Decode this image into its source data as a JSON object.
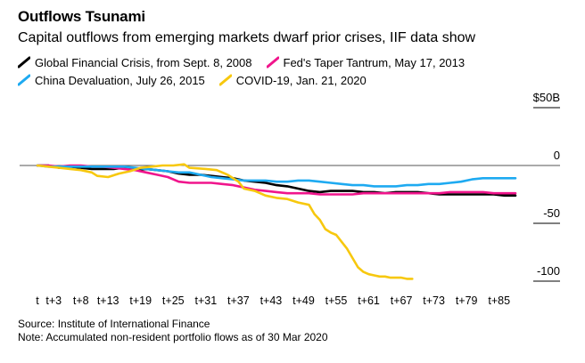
{
  "header": {
    "title": "Outflows Tsunami",
    "subtitle": "Capital outflows from emerging markets dwarf prior crises, IIF data show"
  },
  "footer": {
    "source": "Source: Institute of International Finance",
    "note": "Note: Accumulated non-resident portfolio flows as of 30 Mar 2020"
  },
  "chart_data": {
    "type": "line",
    "title": "Outflows Tsunami",
    "subtitle": "Capital outflows from emerging markets dwarf prior crises, IIF data show",
    "xlabel": "",
    "ylabel": "",
    "xlim": [
      0,
      90
    ],
    "ylim": [
      -100,
      50
    ],
    "x_ticks": [
      {
        "x": 0,
        "label": "t"
      },
      {
        "x": 3,
        "label": "t+3"
      },
      {
        "x": 8,
        "label": "t+8"
      },
      {
        "x": 13,
        "label": "t+13"
      },
      {
        "x": 19,
        "label": "t+19"
      },
      {
        "x": 25,
        "label": "t+25"
      },
      {
        "x": 31,
        "label": "t+31"
      },
      {
        "x": 37,
        "label": "t+37"
      },
      {
        "x": 43,
        "label": "t+43"
      },
      {
        "x": 49,
        "label": "t+49"
      },
      {
        "x": 55,
        "label": "t+55"
      },
      {
        "x": 61,
        "label": "t+61"
      },
      {
        "x": 67,
        "label": "t+67"
      },
      {
        "x": 73,
        "label": "t+73"
      },
      {
        "x": 79,
        "label": "t+79"
      },
      {
        "x": 85,
        "label": "t+85"
      }
    ],
    "y_ticks": [
      {
        "y": 50,
        "label": "$50B"
      },
      {
        "y": 0,
        "label": "0"
      },
      {
        "y": -50,
        "label": "-50"
      },
      {
        "y": -100,
        "label": "-100"
      }
    ],
    "grid": true,
    "series": [
      {
        "name": "Global Financial Crisis, from Sept. 8, 2008",
        "color": "#000000",
        "points": [
          [
            0,
            0
          ],
          [
            2,
            0
          ],
          [
            4,
            -2
          ],
          [
            6,
            -1
          ],
          [
            8,
            -2
          ],
          [
            10,
            -3
          ],
          [
            12,
            -3
          ],
          [
            14,
            -3
          ],
          [
            16,
            -2
          ],
          [
            18,
            -4
          ],
          [
            20,
            -3
          ],
          [
            22,
            -4
          ],
          [
            24,
            -5
          ],
          [
            26,
            -7
          ],
          [
            28,
            -8
          ],
          [
            30,
            -8
          ],
          [
            32,
            -9
          ],
          [
            34,
            -10
          ],
          [
            36,
            -11
          ],
          [
            38,
            -13
          ],
          [
            40,
            -14
          ],
          [
            42,
            -15
          ],
          [
            44,
            -17
          ],
          [
            46,
            -18
          ],
          [
            48,
            -20
          ],
          [
            50,
            -22
          ],
          [
            52,
            -23
          ],
          [
            54,
            -22
          ],
          [
            56,
            -22
          ],
          [
            58,
            -22
          ],
          [
            60,
            -23
          ],
          [
            62,
            -23
          ],
          [
            64,
            -24
          ],
          [
            66,
            -23
          ],
          [
            68,
            -23
          ],
          [
            70,
            -23
          ],
          [
            72,
            -24
          ],
          [
            74,
            -25
          ],
          [
            76,
            -25
          ],
          [
            78,
            -25
          ],
          [
            80,
            -25
          ],
          [
            82,
            -25
          ],
          [
            84,
            -25
          ],
          [
            86,
            -26
          ],
          [
            88,
            -26
          ]
        ]
      },
      {
        "name": "Fed's Taper Tantrum, May 17, 2013",
        "color": "#f0158c",
        "points": [
          [
            0,
            0
          ],
          [
            2,
            0
          ],
          [
            4,
            -1
          ],
          [
            6,
            0
          ],
          [
            8,
            0
          ],
          [
            10,
            -1
          ],
          [
            12,
            -1
          ],
          [
            14,
            -2
          ],
          [
            16,
            -3
          ],
          [
            18,
            -4
          ],
          [
            20,
            -6
          ],
          [
            22,
            -8
          ],
          [
            24,
            -10
          ],
          [
            26,
            -14
          ],
          [
            28,
            -15
          ],
          [
            30,
            -15
          ],
          [
            32,
            -15
          ],
          [
            34,
            -16
          ],
          [
            36,
            -17
          ],
          [
            38,
            -19
          ],
          [
            40,
            -21
          ],
          [
            42,
            -22
          ],
          [
            44,
            -23
          ],
          [
            46,
            -24
          ],
          [
            48,
            -24
          ],
          [
            50,
            -24
          ],
          [
            52,
            -25
          ],
          [
            54,
            -25
          ],
          [
            56,
            -25
          ],
          [
            58,
            -25
          ],
          [
            60,
            -24
          ],
          [
            62,
            -24
          ],
          [
            64,
            -24
          ],
          [
            66,
            -24
          ],
          [
            68,
            -24
          ],
          [
            70,
            -24
          ],
          [
            72,
            -24
          ],
          [
            74,
            -24
          ],
          [
            76,
            -23
          ],
          [
            78,
            -23
          ],
          [
            80,
            -23
          ],
          [
            82,
            -23
          ],
          [
            84,
            -24
          ],
          [
            86,
            -24
          ],
          [
            88,
            -24
          ]
        ]
      },
      {
        "name": "China Devaluation, July 26, 2015",
        "color": "#1eaaf1",
        "points": [
          [
            0,
            0
          ],
          [
            2,
            -1
          ],
          [
            4,
            -1
          ],
          [
            6,
            -1
          ],
          [
            8,
            -1
          ],
          [
            10,
            -1
          ],
          [
            12,
            -1
          ],
          [
            14,
            -1
          ],
          [
            16,
            -1
          ],
          [
            18,
            -2
          ],
          [
            20,
            -3
          ],
          [
            22,
            -4
          ],
          [
            24,
            -5
          ],
          [
            26,
            -6
          ],
          [
            28,
            -6
          ],
          [
            30,
            -8
          ],
          [
            32,
            -10
          ],
          [
            34,
            -11
          ],
          [
            36,
            -12
          ],
          [
            38,
            -13
          ],
          [
            40,
            -13
          ],
          [
            42,
            -13
          ],
          [
            44,
            -14
          ],
          [
            46,
            -14
          ],
          [
            48,
            -13
          ],
          [
            50,
            -13
          ],
          [
            52,
            -14
          ],
          [
            54,
            -15
          ],
          [
            56,
            -16
          ],
          [
            58,
            -17
          ],
          [
            60,
            -17
          ],
          [
            62,
            -18
          ],
          [
            64,
            -18
          ],
          [
            66,
            -18
          ],
          [
            68,
            -17
          ],
          [
            70,
            -17
          ],
          [
            72,
            -16
          ],
          [
            74,
            -16
          ],
          [
            76,
            -15
          ],
          [
            78,
            -14
          ],
          [
            80,
            -12
          ],
          [
            82,
            -11
          ],
          [
            84,
            -11
          ],
          [
            86,
            -11
          ],
          [
            88,
            -11
          ]
        ]
      },
      {
        "name": "COVID-19, Jan. 21, 2020",
        "color": "#f7c80e",
        "points": [
          [
            0,
            0
          ],
          [
            2,
            -1
          ],
          [
            4,
            -2
          ],
          [
            6,
            -3
          ],
          [
            8,
            -4
          ],
          [
            10,
            -6
          ],
          [
            11,
            -9
          ],
          [
            13,
            -10
          ],
          [
            15,
            -7
          ],
          [
            17,
            -5
          ],
          [
            19,
            -2
          ],
          [
            21,
            -1
          ],
          [
            23,
            0
          ],
          [
            25,
            0
          ],
          [
            27,
            1
          ],
          [
            28,
            -2
          ],
          [
            31,
            -3
          ],
          [
            33,
            -4
          ],
          [
            35,
            -8
          ],
          [
            37,
            -14
          ],
          [
            38,
            -20
          ],
          [
            40,
            -22
          ],
          [
            42,
            -26
          ],
          [
            44,
            -28
          ],
          [
            46,
            -29
          ],
          [
            48,
            -32
          ],
          [
            50,
            -34
          ],
          [
            51,
            -42
          ],
          [
            52,
            -47
          ],
          [
            53,
            -55
          ],
          [
            54,
            -58
          ],
          [
            55,
            -60
          ],
          [
            56,
            -66
          ],
          [
            57,
            -72
          ],
          [
            58,
            -80
          ],
          [
            59,
            -88
          ],
          [
            60,
            -92
          ],
          [
            61,
            -94
          ],
          [
            62,
            -95
          ],
          [
            63,
            -96
          ],
          [
            64,
            -96
          ],
          [
            65,
            -97
          ],
          [
            66,
            -97
          ],
          [
            67,
            -97
          ],
          [
            68,
            -98
          ],
          [
            69,
            -98
          ]
        ]
      }
    ]
  }
}
